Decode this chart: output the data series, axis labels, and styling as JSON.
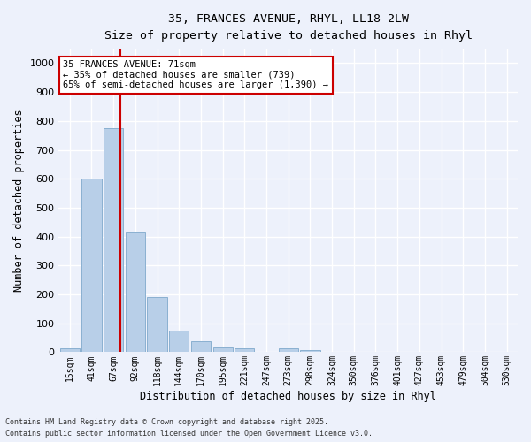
{
  "title_line1": "35, FRANCES AVENUE, RHYL, LL18 2LW",
  "title_line2": "Size of property relative to detached houses in Rhyl",
  "xlabel": "Distribution of detached houses by size in Rhyl",
  "ylabel": "Number of detached properties",
  "categories": [
    "15sqm",
    "41sqm",
    "67sqm",
    "92sqm",
    "118sqm",
    "144sqm",
    "170sqm",
    "195sqm",
    "221sqm",
    "247sqm",
    "273sqm",
    "298sqm",
    "324sqm",
    "350sqm",
    "376sqm",
    "401sqm",
    "427sqm",
    "453sqm",
    "479sqm",
    "504sqm",
    "530sqm"
  ],
  "values": [
    15,
    600,
    775,
    415,
    190,
    75,
    37,
    18,
    12,
    0,
    12,
    8,
    0,
    0,
    0,
    0,
    0,
    0,
    0,
    0,
    0
  ],
  "bar_color": "#b8cfe8",
  "bar_edge_color": "#8ab0d0",
  "annotation_text": "35 FRANCES AVENUE: 71sqm\n← 35% of detached houses are smaller (739)\n65% of semi-detached houses are larger (1,390) →",
  "annotation_box_color": "#ffffff",
  "annotation_box_edge_color": "#cc0000",
  "vline_color": "#cc0000",
  "vline_x": 2.3,
  "ylim": [
    0,
    1050
  ],
  "yticks": [
    0,
    100,
    200,
    300,
    400,
    500,
    600,
    700,
    800,
    900,
    1000
  ],
  "background_color": "#edf1fb",
  "grid_color": "#ffffff",
  "footer_line1": "Contains HM Land Registry data © Crown copyright and database right 2025.",
  "footer_line2": "Contains public sector information licensed under the Open Government Licence v3.0."
}
